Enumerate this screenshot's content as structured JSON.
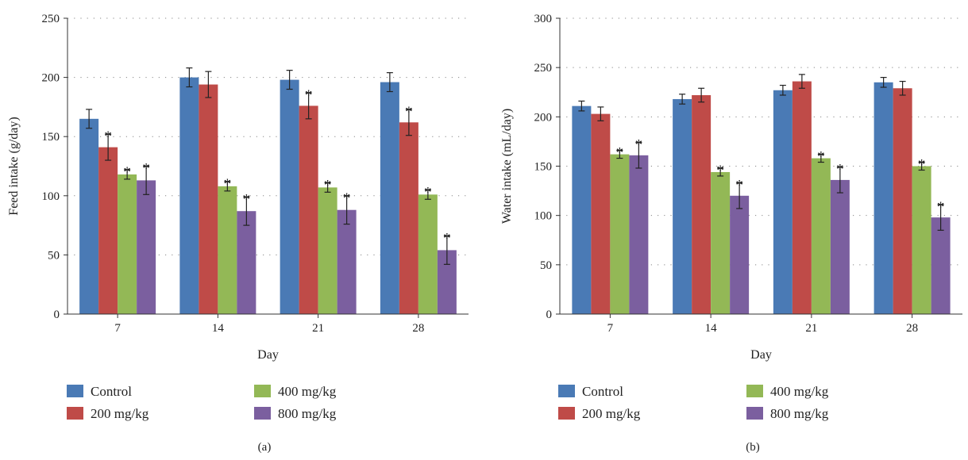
{
  "chart_data": [
    {
      "type": "bar",
      "panel_label": "(a)",
      "categories": [
        "7",
        "14",
        "21",
        "28"
      ],
      "xlabel": "Day",
      "ylabel": "Feed intake (g/day)",
      "ylim": [
        0,
        250
      ],
      "yticks": [
        0,
        50,
        100,
        150,
        200,
        250
      ],
      "grid": true,
      "legend_position": "bottom",
      "series": [
        {
          "name": "Control",
          "color": "#4a7ab5",
          "values": [
            165,
            200,
            198,
            196
          ],
          "errors": [
            8,
            8,
            8,
            8
          ],
          "significant": [
            false,
            false,
            false,
            false
          ]
        },
        {
          "name": "200 mg/kg",
          "color": "#bf4b48",
          "values": [
            141,
            194,
            176,
            162
          ],
          "errors": [
            11,
            11,
            11,
            11
          ],
          "significant": [
            true,
            false,
            true,
            true
          ]
        },
        {
          "name": "400 mg/kg",
          "color": "#93b856",
          "values": [
            118,
            108,
            107,
            101
          ],
          "errors": [
            4,
            4,
            4,
            4
          ],
          "significant": [
            true,
            true,
            true,
            true
          ]
        },
        {
          "name": "800 mg/kg",
          "color": "#7b5f9f",
          "values": [
            113,
            87,
            88,
            54
          ],
          "errors": [
            12,
            12,
            12,
            12
          ],
          "significant": [
            true,
            true,
            true,
            true
          ]
        }
      ],
      "annotation_text": "*"
    },
    {
      "type": "bar",
      "panel_label": "(b)",
      "categories": [
        "7",
        "14",
        "21",
        "28"
      ],
      "xlabel": "Day",
      "ylabel": "Water intake (mL/day)",
      "ylim": [
        0,
        300
      ],
      "yticks": [
        0,
        50,
        100,
        150,
        200,
        250,
        300
      ],
      "grid": true,
      "legend_position": "bottom",
      "series": [
        {
          "name": "Control",
          "color": "#4a7ab5",
          "values": [
            211,
            218,
            227,
            235
          ],
          "errors": [
            5,
            5,
            5,
            5
          ],
          "significant": [
            false,
            false,
            false,
            false
          ]
        },
        {
          "name": "200 mg/kg",
          "color": "#bf4b48",
          "values": [
            203,
            222,
            236,
            229
          ],
          "errors": [
            7,
            7,
            7,
            7
          ],
          "significant": [
            false,
            false,
            false,
            false
          ]
        },
        {
          "name": "400 mg/kg",
          "color": "#93b856",
          "values": [
            162,
            144,
            158,
            150
          ],
          "errors": [
            4,
            4,
            4,
            4
          ],
          "significant": [
            true,
            true,
            true,
            true
          ]
        },
        {
          "name": "800 mg/kg",
          "color": "#7b5f9f",
          "values": [
            161,
            120,
            136,
            98
          ],
          "errors": [
            13,
            13,
            13,
            13
          ],
          "significant": [
            true,
            true,
            true,
            true
          ]
        }
      ],
      "annotation_text": "*"
    }
  ]
}
